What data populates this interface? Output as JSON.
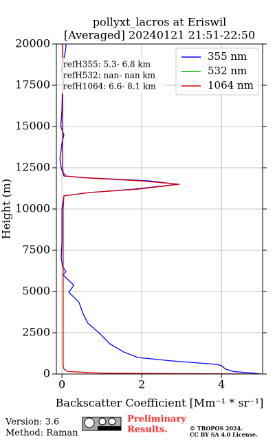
{
  "chart_data": {
    "type": "line",
    "title": [
      "pollyxt_lacros at Eriswil",
      "[Averaged] 20240121 21:51-22:50"
    ],
    "x_label": "Backscatter Coefficient [Mm⁻¹ * sr⁻¹]",
    "y_label": "Height (m)",
    "heights": [
      0,
      50,
      150,
      300,
      500,
      580,
      790,
      1000,
      1330,
      1830,
      2450,
      3080,
      3700,
      4330,
      4960,
      5375,
      6000,
      6200,
      6500,
      7000,
      8000,
      9000,
      10000,
      10800,
      11000,
      11200,
      11500,
      11700,
      11900,
      12000,
      12200,
      12500,
      13000,
      14000,
      14500,
      15000,
      16000,
      17000,
      17500,
      18000,
      18500,
      19000,
      19500,
      19800,
      20000
    ],
    "series": [
      {
        "name": "355 nm",
        "color": "#0000ff",
        "values": [
          5.0,
          4.8,
          4.3,
          4.1,
          4.0,
          3.9,
          2.76,
          1.9,
          1.55,
          1.2,
          0.95,
          0.65,
          0.52,
          0.43,
          0.17,
          0.3,
          0.03,
          0.1,
          0.02,
          -0.02,
          0,
          0,
          0,
          0.05,
          0.7,
          1.8,
          2.9,
          2.2,
          0.6,
          0.05,
          0.02,
          -0.02,
          -0.05,
          0,
          0.05,
          -0.03,
          0,
          0.01,
          0.05,
          0.02,
          -0.02,
          0.04,
          0.08,
          0.1,
          0.1
        ]
      },
      {
        "name": "532 nm",
        "color": "#00b000",
        "values": [
          null,
          null,
          null,
          null,
          null,
          null,
          null,
          null,
          null,
          null,
          null,
          null,
          null,
          null,
          null,
          null,
          null,
          null,
          null,
          null,
          null,
          null,
          null,
          null,
          null,
          null,
          null,
          null,
          null,
          null,
          null,
          null,
          null,
          null,
          null,
          null,
          null,
          null,
          null,
          null,
          null,
          null,
          null,
          null,
          null
        ]
      },
      {
        "name": "1064 nm",
        "color": "#e00000",
        "values": [
          5.0,
          1.0,
          0.15,
          0.05,
          0.03,
          0.03,
          0.03,
          0.03,
          0.03,
          0.03,
          0.03,
          0.03,
          0.03,
          0.03,
          0.03,
          0.03,
          0.03,
          0.03,
          0.03,
          0.03,
          0.03,
          0.03,
          0.03,
          0.05,
          0.7,
          1.9,
          2.95,
          2.0,
          0.5,
          0.1,
          0.03,
          0.02,
          0.02,
          0.02,
          0.02,
          0.02,
          0.02,
          0.02,
          0.02,
          0.02,
          0.02,
          0.02,
          0.02,
          0.02,
          0.02
        ]
      }
    ],
    "xlim": [
      -0.14,
      5.03
    ],
    "ylim": [
      0,
      20000
    ],
    "xticks": [
      0,
      2,
      4
    ],
    "yticks": [
      0,
      2500,
      5000,
      7500,
      10000,
      12500,
      15000,
      17500,
      20000
    ],
    "grid": true,
    "legend": "upper right",
    "annotations": [
      "refH355:  5.3- 6.8 km",
      "refH532:  nan- nan km",
      "refH1064:  6.6- 8.1 km"
    ]
  },
  "footer": {
    "version": "Version: 3.6",
    "method": "Method: Raman",
    "status": [
      "Preliminary",
      "Results."
    ],
    "copyright": [
      "© TROPOS 2024.",
      "CC BY SA 4.0 License."
    ]
  }
}
